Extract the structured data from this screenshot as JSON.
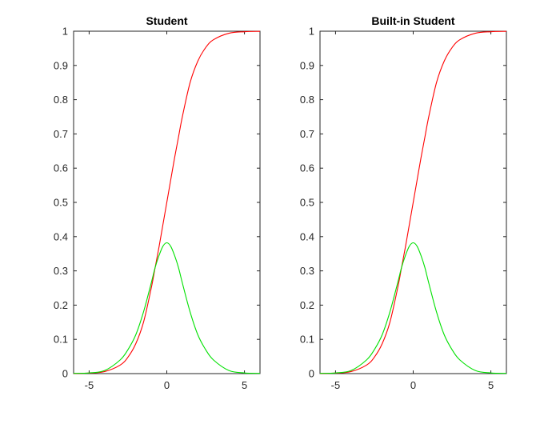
{
  "chart_data": [
    {
      "type": "line",
      "title": "Student",
      "xlabel": "",
      "ylabel": "",
      "xlim": [
        -6,
        6
      ],
      "ylim": [
        0,
        1
      ],
      "xticks": [
        -5,
        0,
        5
      ],
      "xtick_labels": [
        "-5",
        "0",
        "5"
      ],
      "yticks": [
        0,
        0.1,
        0.2,
        0.3,
        0.4,
        0.5,
        0.6,
        0.7,
        0.8,
        0.9,
        1
      ],
      "ytick_labels": [
        "0",
        "0.1",
        "0.2",
        "0.3",
        "0.4",
        "0.5",
        "0.6",
        "0.7",
        "0.8",
        "0.9",
        "1"
      ],
      "grid": false,
      "x": [
        -6,
        -5,
        -4,
        -3,
        -2.5,
        -2,
        -1.5,
        -1,
        -0.75,
        -0.5,
        -0.25,
        0,
        0.25,
        0.5,
        0.75,
        1,
        1.5,
        2,
        2.5,
        3,
        4,
        5,
        6
      ],
      "series": [
        {
          "color": "#ff0000",
          "values": [
            0.0005,
            0.0015,
            0.006,
            0.025,
            0.048,
            0.087,
            0.15,
            0.25,
            0.31,
            0.37,
            0.435,
            0.5,
            0.565,
            0.63,
            0.69,
            0.75,
            0.85,
            0.913,
            0.952,
            0.975,
            0.994,
            0.9985,
            0.9995
          ]
        },
        {
          "color": "#00e000",
          "values": [
            0.0008,
            0.002,
            0.009,
            0.04,
            0.07,
            0.113,
            0.18,
            0.265,
            0.31,
            0.345,
            0.372,
            0.382,
            0.372,
            0.345,
            0.31,
            0.265,
            0.18,
            0.113,
            0.07,
            0.04,
            0.009,
            0.002,
            0.0008
          ]
        }
      ]
    },
    {
      "type": "line",
      "title": "Built-in Student",
      "xlabel": "",
      "ylabel": "",
      "xlim": [
        -6,
        6
      ],
      "ylim": [
        0,
        1
      ],
      "xticks": [
        -5,
        0,
        5
      ],
      "xtick_labels": [
        "-5",
        "0",
        "5"
      ],
      "yticks": [
        0,
        0.1,
        0.2,
        0.3,
        0.4,
        0.5,
        0.6,
        0.7,
        0.8,
        0.9,
        1
      ],
      "ytick_labels": [
        "0",
        "0.1",
        "0.2",
        "0.3",
        "0.4",
        "0.5",
        "0.6",
        "0.7",
        "0.8",
        "0.9",
        "1"
      ],
      "grid": false,
      "x": [
        -6,
        -5,
        -4,
        -3,
        -2.5,
        -2,
        -1.5,
        -1,
        -0.75,
        -0.5,
        -0.25,
        0,
        0.25,
        0.5,
        0.75,
        1,
        1.5,
        2,
        2.5,
        3,
        4,
        5,
        6
      ],
      "series": [
        {
          "color": "#ff0000",
          "values": [
            0.0005,
            0.0015,
            0.006,
            0.025,
            0.048,
            0.087,
            0.15,
            0.25,
            0.31,
            0.37,
            0.435,
            0.5,
            0.565,
            0.63,
            0.69,
            0.75,
            0.85,
            0.913,
            0.952,
            0.975,
            0.994,
            0.9985,
            0.9995
          ]
        },
        {
          "color": "#00e000",
          "values": [
            0.0008,
            0.002,
            0.009,
            0.04,
            0.07,
            0.113,
            0.18,
            0.265,
            0.31,
            0.345,
            0.372,
            0.382,
            0.372,
            0.345,
            0.31,
            0.265,
            0.18,
            0.113,
            0.07,
            0.04,
            0.009,
            0.002,
            0.0008
          ]
        }
      ]
    }
  ]
}
